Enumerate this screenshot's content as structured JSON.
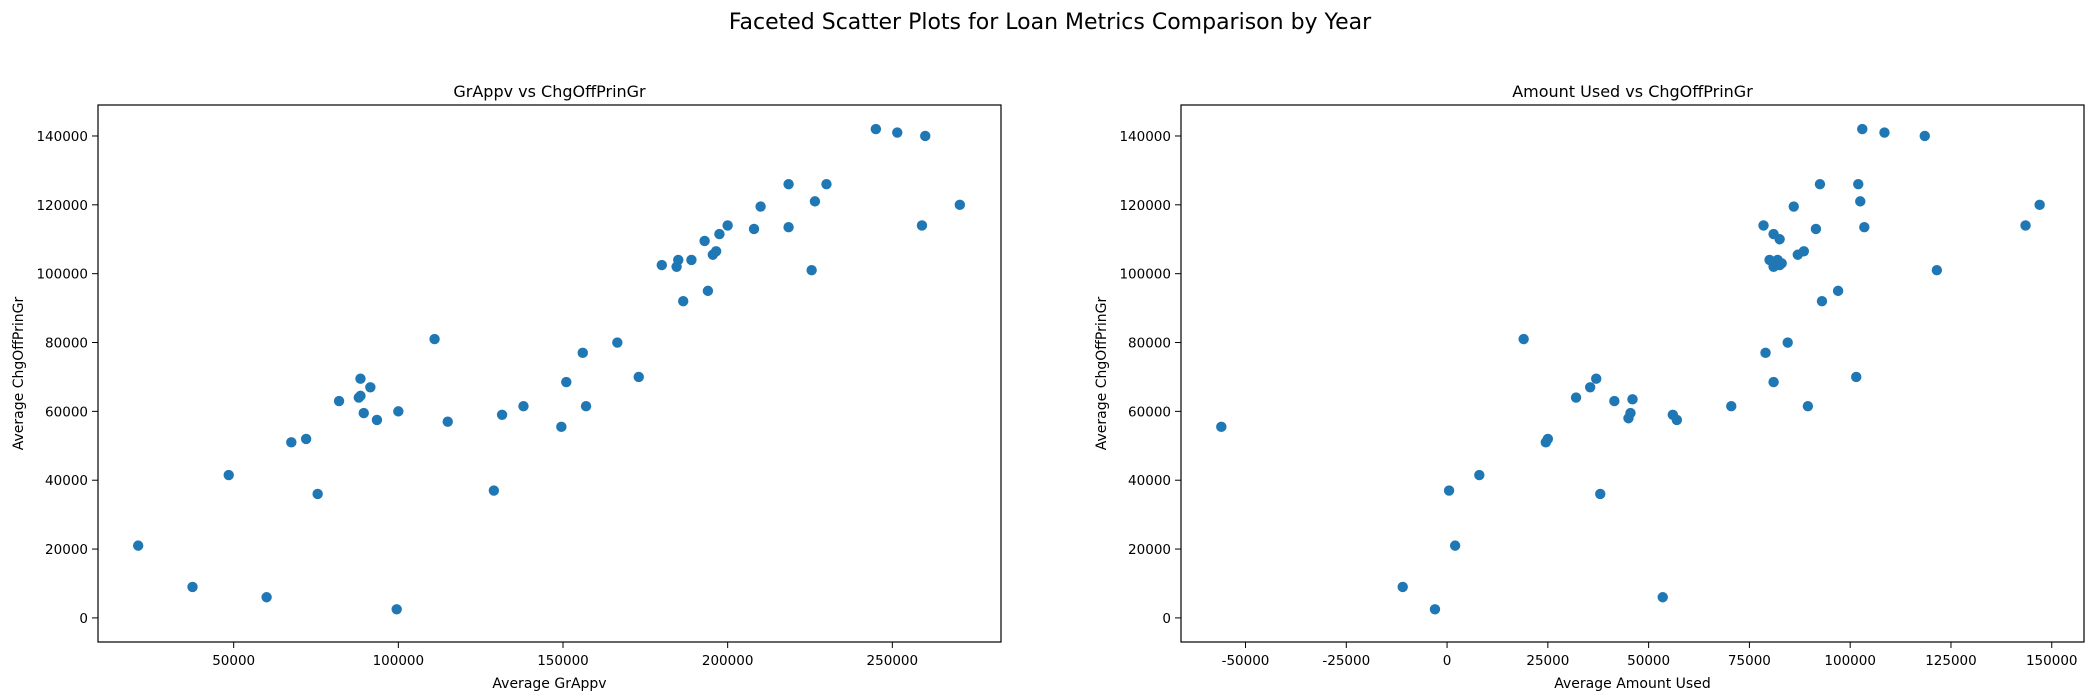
{
  "figure": {
    "suptitle": "Faceted Scatter Plots for Loan Metrics Comparison by Year"
  },
  "colors": {
    "marker": "#1f77b4",
    "axis": "#000000"
  },
  "chart_data": [
    {
      "type": "scatter",
      "title": "GrAppv vs ChgOffPrinGr",
      "xlabel": "Average GrAppv",
      "ylabel": "Average ChgOffPrinGr",
      "xlim": [
        8800,
        283000
      ],
      "ylim": [
        -7000,
        149000
      ],
      "xticks": [
        50000,
        100000,
        150000,
        200000,
        250000
      ],
      "yticks": [
        0,
        20000,
        40000,
        60000,
        80000,
        100000,
        120000,
        140000
      ],
      "grid": false,
      "points": [
        [
          21000,
          21000
        ],
        [
          37500,
          9000
        ],
        [
          48500,
          41500
        ],
        [
          60000,
          6000
        ],
        [
          67500,
          51000
        ],
        [
          72000,
          52000
        ],
        [
          75500,
          36000
        ],
        [
          82000,
          63000
        ],
        [
          88000,
          64000
        ],
        [
          88500,
          64500
        ],
        [
          88500,
          69500
        ],
        [
          89500,
          59500
        ],
        [
          91500,
          67000
        ],
        [
          93500,
          57500
        ],
        [
          100000,
          60000
        ],
        [
          99500,
          2500
        ],
        [
          111000,
          81000
        ],
        [
          115000,
          57000
        ],
        [
          129000,
          37000
        ],
        [
          131500,
          59000
        ],
        [
          138000,
          61500
        ],
        [
          149500,
          55500
        ],
        [
          151000,
          68500
        ],
        [
          156000,
          77000
        ],
        [
          157000,
          61500
        ],
        [
          166500,
          80000
        ],
        [
          173000,
          70000
        ],
        [
          180000,
          102500
        ],
        [
          184500,
          102000
        ],
        [
          185000,
          104000
        ],
        [
          186500,
          92000
        ],
        [
          189000,
          104000
        ],
        [
          193000,
          109500
        ],
        [
          194000,
          95000
        ],
        [
          195500,
          105500
        ],
        [
          196500,
          106500
        ],
        [
          197500,
          111500
        ],
        [
          200000,
          114000
        ],
        [
          208000,
          113000
        ],
        [
          210000,
          119500
        ],
        [
          218500,
          126000
        ],
        [
          218500,
          113500
        ],
        [
          225500,
          101000
        ],
        [
          226500,
          121000
        ],
        [
          230000,
          126000
        ],
        [
          245000,
          142000
        ],
        [
          251500,
          141000
        ],
        [
          259000,
          114000
        ],
        [
          260000,
          140000
        ],
        [
          270500,
          120000
        ]
      ]
    },
    {
      "type": "scatter",
      "title": "Amount Used vs ChgOffPrinGr",
      "xlabel": "Average Amount Used",
      "ylabel": "Average ChgOffPrinGr",
      "xlim": [
        -66000,
        158000
      ],
      "ylim": [
        -7000,
        149000
      ],
      "xticks": [
        -50000,
        -25000,
        0,
        25000,
        50000,
        75000,
        100000,
        125000,
        150000
      ],
      "yticks": [
        0,
        20000,
        40000,
        60000,
        80000,
        100000,
        120000,
        140000
      ],
      "grid": false,
      "points": [
        [
          -56000,
          55500
        ],
        [
          -11000,
          9000
        ],
        [
          -3000,
          2500
        ],
        [
          500,
          37000
        ],
        [
          2000,
          21000
        ],
        [
          8000,
          41500
        ],
        [
          19000,
          81000
        ],
        [
          32000,
          64000
        ],
        [
          35500,
          67000
        ],
        [
          37000,
          69500
        ],
        [
          38000,
          36000
        ],
        [
          41500,
          63000
        ],
        [
          24500,
          51000
        ],
        [
          25000,
          52000
        ],
        [
          45000,
          58000
        ],
        [
          45500,
          59500
        ],
        [
          46000,
          63500
        ],
        [
          53500,
          6000
        ],
        [
          56000,
          59000
        ],
        [
          57000,
          57500
        ],
        [
          70500,
          61500
        ],
        [
          78500,
          114000
        ],
        [
          79000,
          77000
        ],
        [
          80000,
          104000
        ],
        [
          81000,
          111500
        ],
        [
          81000,
          68500
        ],
        [
          81000,
          102000
        ],
        [
          82000,
          104000
        ],
        [
          82500,
          110000
        ],
        [
          82500,
          102500
        ],
        [
          83000,
          103000
        ],
        [
          84500,
          80000
        ],
        [
          86000,
          119500
        ],
        [
          87000,
          105500
        ],
        [
          88500,
          106500
        ],
        [
          89500,
          61500
        ],
        [
          91500,
          113000
        ],
        [
          92500,
          126000
        ],
        [
          93000,
          92000
        ],
        [
          97000,
          95000
        ],
        [
          101500,
          70000
        ],
        [
          102000,
          126000
        ],
        [
          102500,
          121000
        ],
        [
          103000,
          142000
        ],
        [
          103500,
          113500
        ],
        [
          108500,
          141000
        ],
        [
          118500,
          140000
        ],
        [
          121500,
          101000
        ],
        [
          143500,
          114000
        ],
        [
          147000,
          120000
        ]
      ]
    }
  ]
}
